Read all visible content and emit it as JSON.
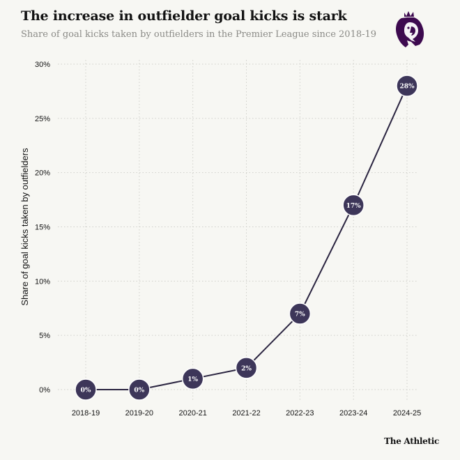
{
  "brand": "The Athletic",
  "logo_icon": "premier-league-lion-icon",
  "colors": {
    "background": "#f7f7f3",
    "line": "#2a2440",
    "marker": "#3d3659",
    "marker_stroke": "#ffffff",
    "grid": "#cfcfca",
    "logo": "#3d0a4f"
  },
  "chart_data": {
    "type": "line",
    "title": "The increase in outfielder goal kicks is stark",
    "subtitle": "Share of goal kicks taken by outfielders in the Premier League since 2018-19",
    "xlabel": "",
    "ylabel": "Share of goal kicks taken by outfielders",
    "categories": [
      "2018-19",
      "2019-20",
      "2020-21",
      "2021-22",
      "2022-23",
      "2023-24",
      "2024-25"
    ],
    "values": [
      0,
      0,
      1,
      2,
      7,
      17,
      28
    ],
    "data_labels": [
      "0%",
      "0%",
      "1%",
      "2%",
      "7%",
      "17%",
      "28%"
    ],
    "ylim": [
      0,
      30
    ],
    "yticks": [
      0,
      5,
      10,
      15,
      20,
      25,
      30
    ],
    "ytick_labels": [
      "0%",
      "5%",
      "10%",
      "15%",
      "20%",
      "25%",
      "30%"
    ],
    "grid": true,
    "grid_style": "dotted",
    "legend": "none"
  }
}
